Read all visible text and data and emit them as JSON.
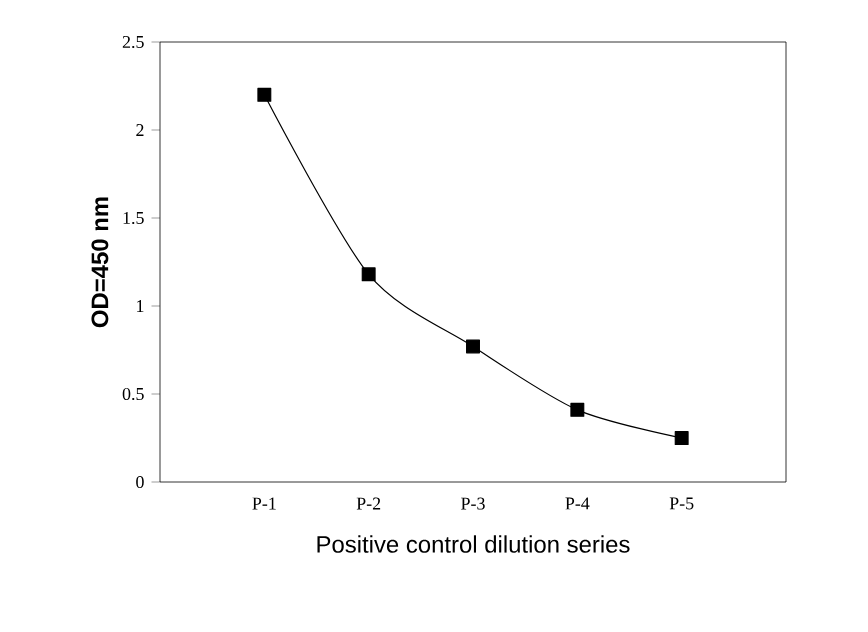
{
  "chart_data": {
    "type": "line",
    "xlabel": "Positive control dilution series",
    "ylabel": "OD=450 nm",
    "categories": [
      "P-1",
      "P-2",
      "P-3",
      "P-4",
      "P-5"
    ],
    "series": [
      {
        "color": "#000000",
        "values": [
          2.2,
          1.18,
          0.77,
          0.41,
          0.25
        ]
      }
    ],
    "ylim": [
      0,
      2.5
    ],
    "yticks": [
      0,
      0.5,
      1,
      1.5,
      2,
      2.5
    ],
    "marker": "square",
    "line_style": "solid",
    "grid": false
  }
}
